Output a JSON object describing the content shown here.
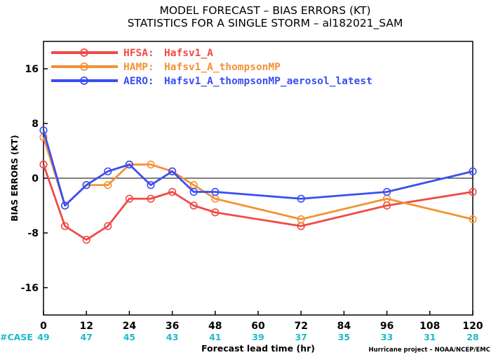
{
  "chart_data": {
    "type": "line",
    "title": [
      "MODEL FORECAST – BIAS ERRORS (KT)",
      "STATISTICS FOR A SINGLE STORM – al182021_SAM"
    ],
    "xlabel": "Forecast lead time (hr)",
    "ylabel": "BIAS ERRORS (KT)",
    "xlim": [
      0,
      120
    ],
    "ylim": [
      -20,
      20
    ],
    "xticks": [
      0,
      12,
      24,
      36,
      48,
      60,
      72,
      84,
      96,
      108,
      120
    ],
    "yticks": [
      -16,
      -8,
      0,
      8,
      16
    ],
    "grid": false,
    "zero_line": true,
    "legend_position": "top-left",
    "case_label": "#CASE",
    "case_x": [
      0,
      12,
      24,
      36,
      48,
      60,
      72,
      84,
      96,
      108,
      120
    ],
    "case_counts": [
      "49",
      "47",
      "45",
      "43",
      "41",
      "39",
      "37",
      "35",
      "33",
      "31",
      "28"
    ],
    "credit": "Hurricane project – NOAA/NCEP/EMC",
    "series": [
      {
        "name": "HFSA:",
        "label": "Hafsv1_A",
        "color": "#f04a46",
        "x": [
          0,
          6,
          12,
          18,
          24,
          30,
          36,
          42,
          48,
          72,
          96,
          120
        ],
        "y": [
          2,
          -7,
          -9,
          -7,
          -3,
          -3,
          -2,
          -4,
          -5,
          -7,
          -4,
          -2
        ]
      },
      {
        "name": "HAMP:",
        "label": "Hafsv1_A_thompsonMP",
        "color": "#f39236",
        "x": [
          0,
          6,
          12,
          18,
          24,
          30,
          36,
          42,
          48,
          72,
          96,
          120
        ],
        "y": [
          6,
          -4,
          -1,
          -1,
          2,
          2,
          1,
          -1,
          -3,
          -6,
          -3,
          -6
        ]
      },
      {
        "name": "AERO:",
        "label": "Hafsv1_A_thompsonMP_aerosol_latest",
        "color": "#3a4ef2",
        "x": [
          0,
          6,
          12,
          18,
          24,
          30,
          36,
          42,
          48,
          72,
          96,
          120
        ],
        "y": [
          7,
          -4,
          -1,
          1,
          2,
          -1,
          1,
          -2,
          -2,
          -3,
          -2,
          1
        ]
      }
    ]
  }
}
